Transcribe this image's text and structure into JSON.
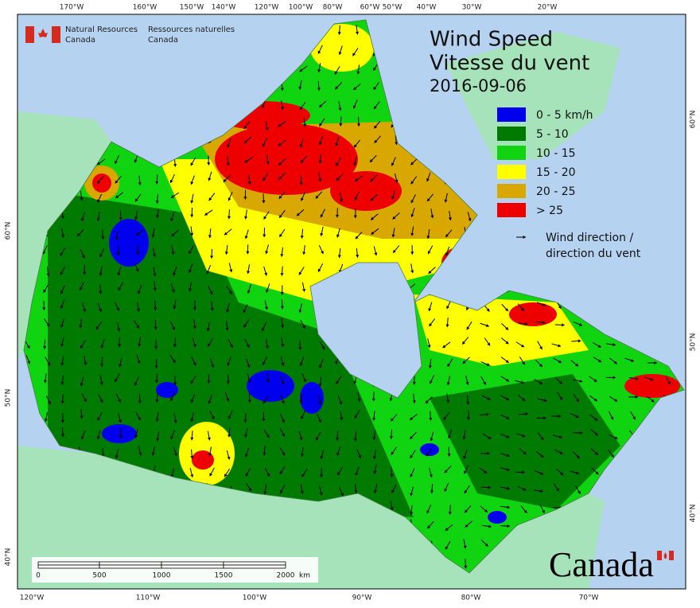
{
  "header": {
    "agency_en": [
      "Natural Resources",
      "Canada"
    ],
    "agency_fr": [
      "Ressources naturelles",
      "Canada"
    ]
  },
  "title": [
    "Wind Speed",
    "Vitesse du vent"
  ],
  "date": "2016-09-06",
  "legend": {
    "items": [
      {
        "label": "0 - 5 km/h",
        "color": "#0000ee"
      },
      {
        "label": "5 - 10",
        "color": "#007a00"
      },
      {
        "label": "10 - 15",
        "color": "#11d411"
      },
      {
        "label": "15 - 20",
        "color": "#ffff00"
      },
      {
        "label": "20 - 25",
        "color": "#d9a800"
      },
      {
        "label": "> 25",
        "color": "#ee0000"
      }
    ],
    "arrow_label": [
      "Wind direction /",
      "direction du vent"
    ]
  },
  "top_labels": [
    "170°W",
    "160°W",
    "150°W",
    "140°W",
    "120°W",
    "100°W",
    "80°W",
    "60°W",
    "50°W",
    "40°W",
    "30°W",
    "20°W"
  ],
  "bottom_labels": [
    "120°W",
    "110°W",
    "100°W",
    "90°W",
    "80°W",
    "70°W"
  ],
  "left_labels": [
    "60°N",
    "50°N",
    "40°N"
  ],
  "right_labels": [
    "60°N",
    "50°N",
    "40°N"
  ],
  "scale_bar": {
    "labels": [
      "0",
      "500",
      "1000",
      "1500",
      "2000"
    ],
    "unit": "km"
  },
  "wordmark": "Canada"
}
